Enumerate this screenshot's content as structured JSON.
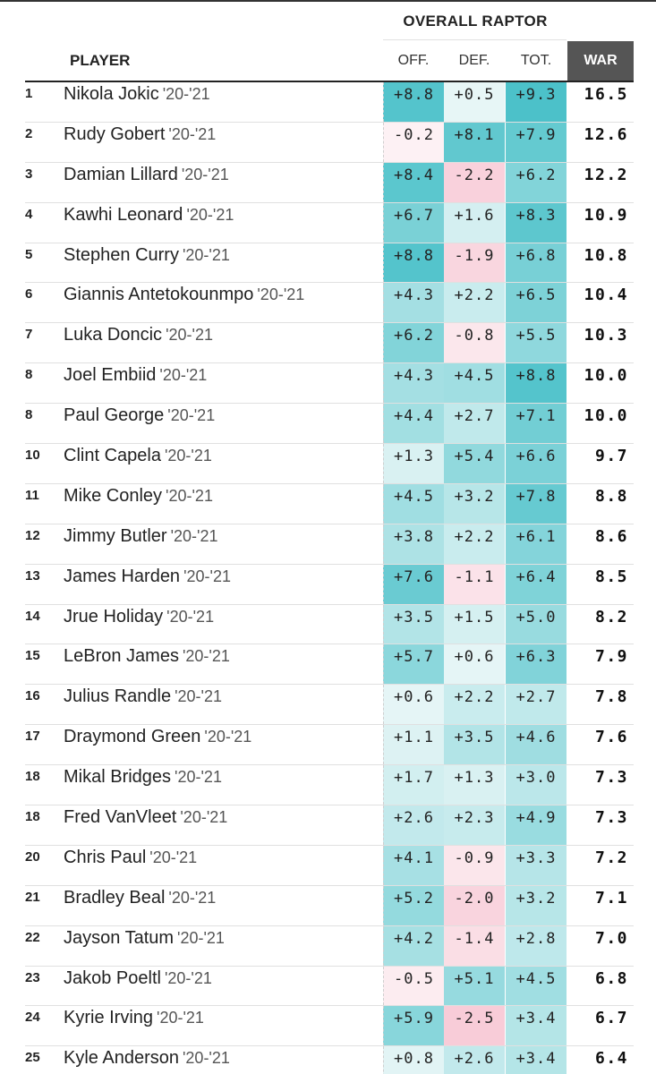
{
  "header": {
    "group_label": "OVERALL RAPTOR",
    "player_label": "PLAYER",
    "off_label": "OFF.",
    "def_label": "DEF.",
    "tot_label": "TOT.",
    "war_label": "WAR"
  },
  "colors": {
    "strong_positive": "#5ac8cf",
    "positive": "#a3dfe1",
    "slight_positive": "#eef8f8",
    "negative": "#fbdde4",
    "war_header_bg": "#555555"
  },
  "rows": [
    {
      "rank": "1",
      "name": "Nikola Jokic",
      "season": "'20-'21",
      "off": "+8.8",
      "def": "+0.5",
      "tot": "+9.3",
      "war": "16.5"
    },
    {
      "rank": "2",
      "name": "Rudy Gobert",
      "season": "'20-'21",
      "off": "-0.2",
      "def": "+8.1",
      "tot": "+7.9",
      "war": "12.6"
    },
    {
      "rank": "3",
      "name": "Damian Lillard",
      "season": "'20-'21",
      "off": "+8.4",
      "def": "-2.2",
      "tot": "+6.2",
      "war": "12.2"
    },
    {
      "rank": "4",
      "name": "Kawhi Leonard",
      "season": "'20-'21",
      "off": "+6.7",
      "def": "+1.6",
      "tot": "+8.3",
      "war": "10.9"
    },
    {
      "rank": "5",
      "name": "Stephen Curry",
      "season": "'20-'21",
      "off": "+8.8",
      "def": "-1.9",
      "tot": "+6.8",
      "war": "10.8"
    },
    {
      "rank": "6",
      "name": "Giannis Antetokounmpo",
      "season": "'20-'21",
      "off": "+4.3",
      "def": "+2.2",
      "tot": "+6.5",
      "war": "10.4"
    },
    {
      "rank": "7",
      "name": "Luka Doncic",
      "season": "'20-'21",
      "off": "+6.2",
      "def": "-0.8",
      "tot": "+5.5",
      "war": "10.3"
    },
    {
      "rank": "8",
      "name": "Joel Embiid",
      "season": "'20-'21",
      "off": "+4.3",
      "def": "+4.5",
      "tot": "+8.8",
      "war": "10.0"
    },
    {
      "rank": "8",
      "name": "Paul George",
      "season": "'20-'21",
      "off": "+4.4",
      "def": "+2.7",
      "tot": "+7.1",
      "war": "10.0"
    },
    {
      "rank": "10",
      "name": "Clint Capela",
      "season": "'20-'21",
      "off": "+1.3",
      "def": "+5.4",
      "tot": "+6.6",
      "war": "9.7"
    },
    {
      "rank": "11",
      "name": "Mike Conley",
      "season": "'20-'21",
      "off": "+4.5",
      "def": "+3.2",
      "tot": "+7.8",
      "war": "8.8"
    },
    {
      "rank": "12",
      "name": "Jimmy Butler",
      "season": "'20-'21",
      "off": "+3.8",
      "def": "+2.2",
      "tot": "+6.1",
      "war": "8.6"
    },
    {
      "rank": "13",
      "name": "James Harden",
      "season": "'20-'21",
      "off": "+7.6",
      "def": "-1.1",
      "tot": "+6.4",
      "war": "8.5"
    },
    {
      "rank": "14",
      "name": "Jrue Holiday",
      "season": "'20-'21",
      "off": "+3.5",
      "def": "+1.5",
      "tot": "+5.0",
      "war": "8.2"
    },
    {
      "rank": "15",
      "name": "LeBron James",
      "season": "'20-'21",
      "off": "+5.7",
      "def": "+0.6",
      "tot": "+6.3",
      "war": "7.9"
    },
    {
      "rank": "16",
      "name": "Julius Randle",
      "season": "'20-'21",
      "off": "+0.6",
      "def": "+2.2",
      "tot": "+2.7",
      "war": "7.8"
    },
    {
      "rank": "17",
      "name": "Draymond Green",
      "season": "'20-'21",
      "off": "+1.1",
      "def": "+3.5",
      "tot": "+4.6",
      "war": "7.6"
    },
    {
      "rank": "18",
      "name": "Mikal Bridges",
      "season": "'20-'21",
      "off": "+1.7",
      "def": "+1.3",
      "tot": "+3.0",
      "war": "7.3"
    },
    {
      "rank": "18",
      "name": "Fred VanVleet",
      "season": "'20-'21",
      "off": "+2.6",
      "def": "+2.3",
      "tot": "+4.9",
      "war": "7.3"
    },
    {
      "rank": "20",
      "name": "Chris Paul",
      "season": "'20-'21",
      "off": "+4.1",
      "def": "-0.9",
      "tot": "+3.3",
      "war": "7.2"
    },
    {
      "rank": "21",
      "name": "Bradley Beal",
      "season": "'20-'21",
      "off": "+5.2",
      "def": "-2.0",
      "tot": "+3.2",
      "war": "7.1"
    },
    {
      "rank": "22",
      "name": "Jayson Tatum",
      "season": "'20-'21",
      "off": "+4.2",
      "def": "-1.4",
      "tot": "+2.8",
      "war": "7.0"
    },
    {
      "rank": "23",
      "name": "Jakob Poeltl",
      "season": "'20-'21",
      "off": "-0.5",
      "def": "+5.1",
      "tot": "+4.5",
      "war": "6.8"
    },
    {
      "rank": "24",
      "name": "Kyrie Irving",
      "season": "'20-'21",
      "off": "+5.9",
      "def": "-2.5",
      "tot": "+3.4",
      "war": "6.7"
    },
    {
      "rank": "25",
      "name": "Kyle Anderson",
      "season": "'20-'21",
      "off": "+0.8",
      "def": "+2.6",
      "tot": "+3.4",
      "war": "6.4"
    }
  ]
}
